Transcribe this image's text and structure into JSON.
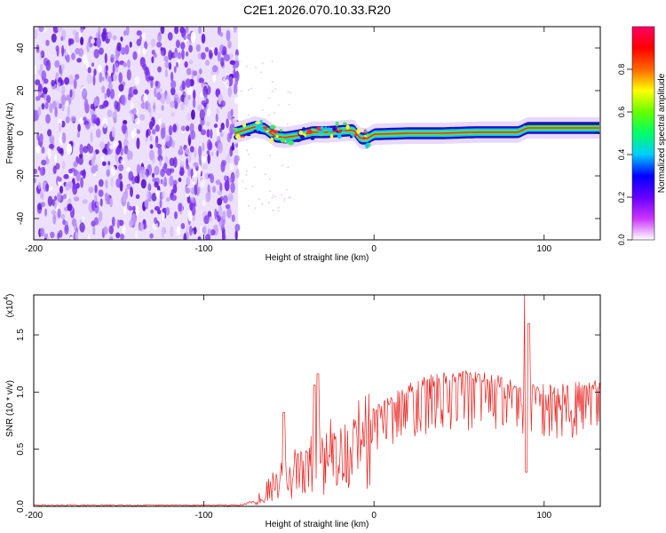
{
  "title": "C2E1.2026.070.10.33.R20",
  "chart_data": [
    {
      "type": "heatmap",
      "name": "spectrogram",
      "xlabel": "Height of straight line (km)",
      "ylabel": "Frequency (Hz)",
      "xlim": [
        -200,
        133
      ],
      "ylim": [
        -50,
        50
      ],
      "x_ticks": [
        -200,
        -100,
        0,
        100
      ],
      "x_tick_labels": [
        "-200",
        "-100",
        "0",
        "100"
      ],
      "y_ticks": [
        -40,
        -20,
        0,
        20,
        40
      ],
      "y_tick_labels": [
        "-40",
        "-20",
        "0",
        "20",
        "40"
      ],
      "noise_region_km": [
        -200,
        -80
      ],
      "ridge_start_km": -82,
      "ridge_profile": [
        {
          "x": -82,
          "y": 0.0
        },
        {
          "x": -78,
          "y": 1.0
        },
        {
          "x": -70,
          "y": 3.0
        },
        {
          "x": -64,
          "y": 2.0
        },
        {
          "x": -58,
          "y": -1.5
        },
        {
          "x": -52,
          "y": -2.0
        },
        {
          "x": -44,
          "y": -1.0
        },
        {
          "x": -36,
          "y": 0.5
        },
        {
          "x": -28,
          "y": 0.5
        },
        {
          "x": -20,
          "y": 1.0
        },
        {
          "x": -12,
          "y": 1.5
        },
        {
          "x": -8,
          "y": -2.5
        },
        {
          "x": -4,
          "y": -2.5
        },
        {
          "x": 0,
          "y": -0.5
        },
        {
          "x": 20,
          "y": 0.0
        },
        {
          "x": 40,
          "y": 0.0
        },
        {
          "x": 60,
          "y": 0.5
        },
        {
          "x": 85,
          "y": 0.5
        },
        {
          "x": 90,
          "y": 2.5
        },
        {
          "x": 100,
          "y": 2.5
        },
        {
          "x": 133,
          "y": 2.5
        }
      ],
      "colorbar": {
        "label": "Normalized spectral amplitude",
        "range": [
          0,
          1
        ],
        "ticks": [
          0.0,
          0.2,
          0.4,
          0.6,
          0.8
        ],
        "tick_labels": [
          "0.0",
          "0.2",
          "0.4",
          "0.6",
          "0.8"
        ],
        "colors": [
          "#ffffff",
          "#cc33ff",
          "#6600ff",
          "#0000ff",
          "#00ccff",
          "#00ff66",
          "#66ff00",
          "#ffff00",
          "#ff6600",
          "#ff0000",
          "#ff0066"
        ]
      }
    },
    {
      "type": "line",
      "name": "snr",
      "xlabel": "Height of straight line (km)",
      "ylabel": "SNR (10 * v/v)",
      "scale_label_base": "(x10",
      "scale_label_exp": "4",
      "scale_label_close": ")",
      "xlim": [
        -200,
        133
      ],
      "ylim": [
        0,
        1.85
      ],
      "x_ticks": [
        -200,
        -100,
        0,
        100
      ],
      "x_tick_labels": [
        "-200",
        "-100",
        "0",
        "100"
      ],
      "y_ticks": [
        0.0,
        0.5,
        1.0,
        1.5
      ],
      "y_tick_labels": [
        "0.0",
        "0.5",
        "1.0",
        "1.5"
      ],
      "color": "#e8231f",
      "envelope": [
        {
          "x": -200,
          "y": 0.01
        },
        {
          "x": -80,
          "y": 0.01
        },
        {
          "x": -70,
          "y": 0.05
        },
        {
          "x": -60,
          "y": 0.25
        },
        {
          "x": -50,
          "y": 0.4
        },
        {
          "x": -40,
          "y": 0.5
        },
        {
          "x": -30,
          "y": 0.62
        },
        {
          "x": -20,
          "y": 0.72
        },
        {
          "x": -10,
          "y": 0.8
        },
        {
          "x": 0,
          "y": 0.88
        },
        {
          "x": 10,
          "y": 0.98
        },
        {
          "x": 20,
          "y": 1.08
        },
        {
          "x": 30,
          "y": 1.14
        },
        {
          "x": 40,
          "y": 1.18
        },
        {
          "x": 50,
          "y": 1.2
        },
        {
          "x": 60,
          "y": 1.19
        },
        {
          "x": 70,
          "y": 1.16
        },
        {
          "x": 80,
          "y": 1.13
        },
        {
          "x": 88,
          "y": 1.08
        },
        {
          "x": 100,
          "y": 1.07
        },
        {
          "x": 110,
          "y": 1.08
        },
        {
          "x": 120,
          "y": 1.1
        },
        {
          "x": 133,
          "y": 1.12
        }
      ],
      "spikes": [
        {
          "x": -53,
          "y": 0.82
        },
        {
          "x": -35,
          "y": 1.06
        },
        {
          "x": -33,
          "y": 1.16
        },
        {
          "x": 89,
          "y": 1.85
        },
        {
          "x": 91,
          "y": 1.6
        }
      ]
    }
  ]
}
